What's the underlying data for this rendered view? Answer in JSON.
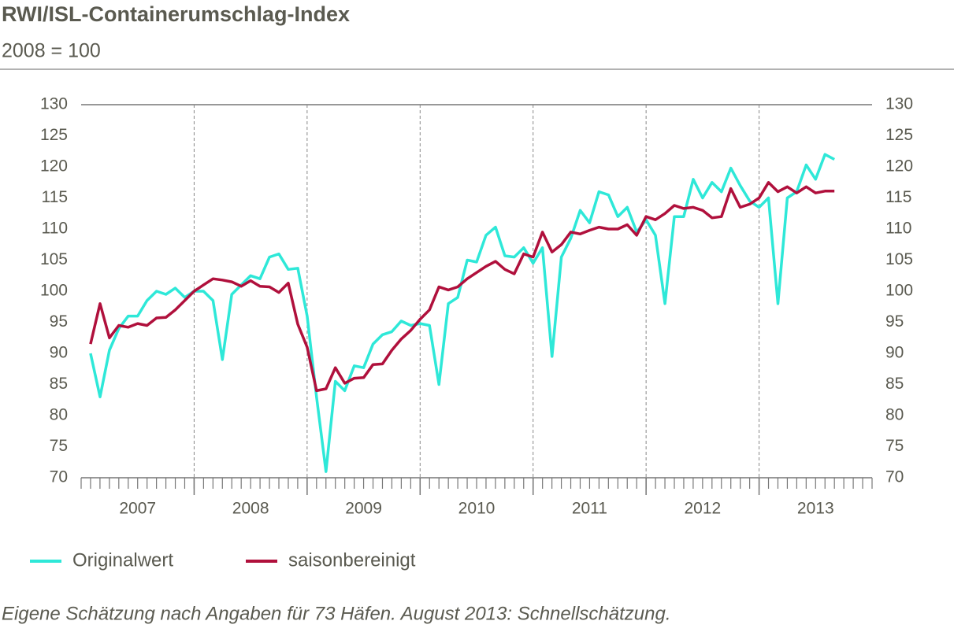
{
  "chart_data": {
    "type": "line",
    "title": "RWI/ISL-Containerumschlag-Index",
    "subtitle": "2008 = 100",
    "note": "Eigene Schätzung nach Angaben für 73 Häfen. August 2013: Schnellschätzung.",
    "x": [
      2007.083,
      2007.167,
      2007.25,
      2007.333,
      2007.417,
      2007.5,
      2007.583,
      2007.667,
      2007.75,
      2007.833,
      2007.917,
      2008.0,
      2008.083,
      2008.167,
      2008.25,
      2008.333,
      2008.417,
      2008.5,
      2008.583,
      2008.667,
      2008.75,
      2008.833,
      2008.917,
      2009.0,
      2009.083,
      2009.167,
      2009.25,
      2009.333,
      2009.417,
      2009.5,
      2009.583,
      2009.667,
      2009.75,
      2009.833,
      2009.917,
      2010.0,
      2010.083,
      2010.167,
      2010.25,
      2010.333,
      2010.417,
      2010.5,
      2010.583,
      2010.667,
      2010.75,
      2010.833,
      2010.917,
      2011.0,
      2011.083,
      2011.167,
      2011.25,
      2011.333,
      2011.417,
      2011.5,
      2011.583,
      2011.667,
      2011.75,
      2011.833,
      2011.917,
      2012.0,
      2012.083,
      2012.167,
      2012.25,
      2012.333,
      2012.417,
      2012.5,
      2012.583,
      2012.667,
      2012.75,
      2012.833,
      2012.917,
      2013.0,
      2013.083,
      2013.167,
      2013.25,
      2013.333,
      2013.417,
      2013.5,
      2013.583,
      2013.667
    ],
    "series": [
      {
        "name": "Originalwert",
        "color": "#2ee8d8",
        "values": [
          90,
          83,
          90.5,
          94,
          96,
          96,
          98.5,
          100,
          99.5,
          100.5,
          99,
          100,
          100,
          98.5,
          89,
          99.5,
          101,
          102.5,
          102,
          105.5,
          106,
          103.5,
          103.7,
          96,
          83,
          71,
          85.5,
          84,
          88,
          87.7,
          91.5,
          93,
          93.5,
          95.2,
          94.5,
          94.8,
          94.5,
          85,
          98,
          99,
          105,
          104.7,
          109,
          110.3,
          105.7,
          105.5,
          107,
          104.5,
          107,
          89.5,
          105.5,
          108.5,
          113,
          111,
          116,
          115.5,
          112,
          113.5,
          109.5,
          111.5,
          109,
          98,
          112,
          112,
          118,
          115,
          117.5,
          116,
          119.8,
          117,
          114.5,
          113.5,
          115,
          98,
          115,
          116,
          120.3,
          118,
          122,
          121.2
        ]
      },
      {
        "name": "saisonbereinigt",
        "color": "#b0103c",
        "values": [
          91.5,
          98,
          92.5,
          94.5,
          94.2,
          94.8,
          94.5,
          95.7,
          95.8,
          97,
          98.5,
          100,
          101,
          102,
          101.8,
          101.5,
          100.8,
          101.7,
          100.8,
          100.7,
          99.8,
          101.3,
          94.7,
          91,
          84,
          84.3,
          87.7,
          85.2,
          86,
          86.1,
          88.2,
          88.3,
          90.5,
          92.3,
          93.7,
          95.5,
          97,
          100.7,
          100.2,
          100.7,
          102,
          103,
          104,
          104.8,
          103.5,
          102.8,
          106,
          105.5,
          109.5,
          106.3,
          107.5,
          109.5,
          109.2,
          109.8,
          110.3,
          110,
          110,
          110.7,
          109,
          112,
          111.5,
          112.5,
          113.8,
          113.3,
          113.5,
          113,
          111.8,
          112,
          116.5,
          113.5,
          114,
          115,
          117.5,
          116,
          116.8,
          115.8,
          116.8,
          115.8,
          116.1,
          116.1
        ]
      }
    ],
    "xlim": [
      2007,
      2014
    ],
    "xticks": [
      {
        "value": 2007.5,
        "label": "2007"
      },
      {
        "value": 2008.5,
        "label": "2008"
      },
      {
        "value": 2009.5,
        "label": "2009"
      },
      {
        "value": 2010.5,
        "label": "2010"
      },
      {
        "value": 2011.5,
        "label": "2011"
      },
      {
        "value": 2012.5,
        "label": "2012"
      },
      {
        "value": 2013.5,
        "label": "2013"
      }
    ],
    "xgrid": [
      2008,
      2009,
      2010,
      2011,
      2012,
      2013
    ],
    "ylim": [
      70,
      130
    ],
    "yticks": [
      70,
      75,
      80,
      85,
      90,
      95,
      100,
      105,
      110,
      115,
      120,
      125,
      130
    ],
    "y2lim": [
      70,
      130
    ],
    "y2ticks": [
      70,
      75,
      80,
      85,
      90,
      95,
      100,
      105,
      110,
      115,
      120,
      125,
      130
    ]
  }
}
